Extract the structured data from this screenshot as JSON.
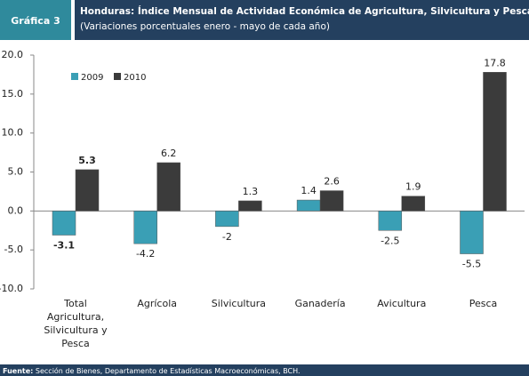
{
  "chart_data": {
    "type": "bar",
    "badge": "Gráfica 3",
    "title": "Honduras: Índice Mensual de Actividad Económica de Agricultura, Silvicultura y Pesca",
    "subtitle": "(Variaciones porcentuales  enero - mayo de cada año)",
    "categories": [
      "Total Agricultura, Silvicultura y Pesca",
      "Agrícola",
      "Silvicultura",
      "Ganadería",
      "Avicultura",
      "Pesca"
    ],
    "series": [
      {
        "name": "2009",
        "color": "#3a9fb5",
        "values": [
          -3.1,
          -4.2,
          -2.0,
          1.4,
          -2.5,
          -5.5
        ]
      },
      {
        "name": "2010",
        "color": "#3b3b3b",
        "values": [
          5.3,
          6.2,
          1.3,
          2.6,
          1.9,
          17.8
        ]
      }
    ],
    "ylim": [
      -10,
      20
    ],
    "yticks": [
      {
        "value": 20,
        "label": "20.0"
      },
      {
        "value": 15,
        "label": "15.0"
      },
      {
        "value": 10,
        "label": "10.0"
      },
      {
        "value": 5,
        "label": "5.0"
      },
      {
        "value": 0,
        "label": "0.0"
      },
      {
        "value": -5,
        "label": "-5.0"
      },
      {
        "value": -10,
        "label": "-10.0"
      }
    ],
    "legend": "top-left",
    "source_label": "Fuente:",
    "source": "Sección de Bienes, Departamento de Estadísticas Macroeconómicas, BCH."
  }
}
